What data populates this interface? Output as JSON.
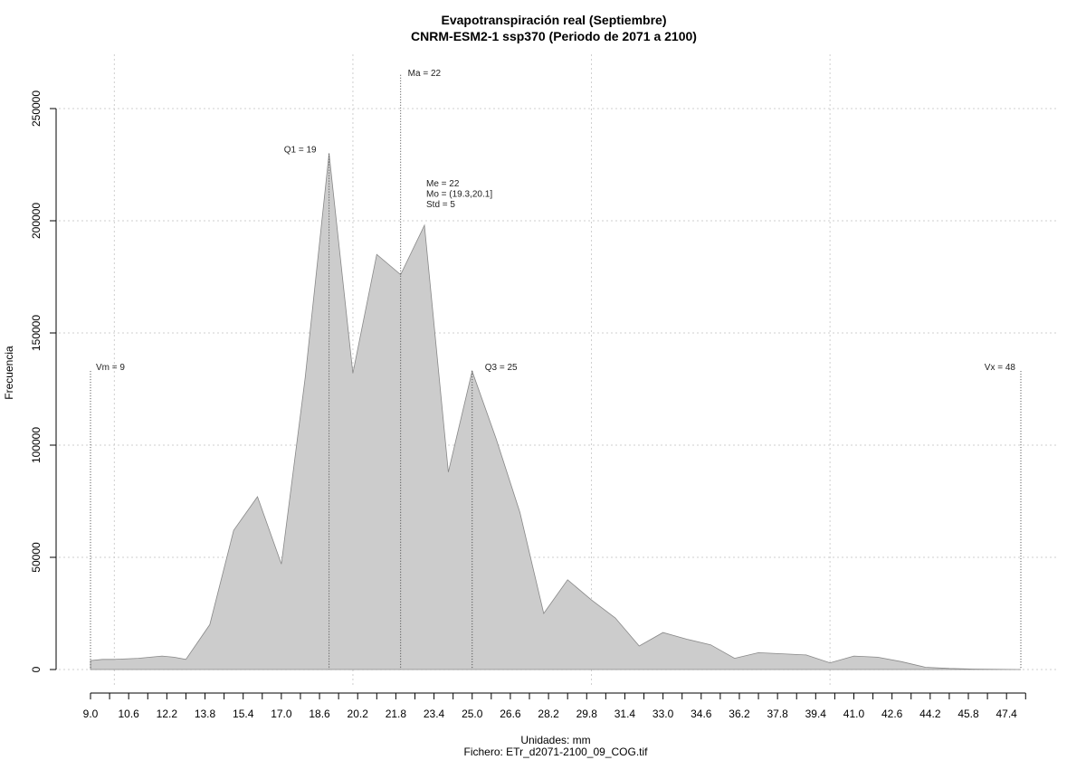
{
  "chart_data": {
    "type": "area",
    "title": "Evapotranspiración real (Septiembre)",
    "subtitle": "CNRM-ESM2-1 ssp370 (Periodo de 2071 a 2100)",
    "xlabel": "Unidades: mm",
    "ylabel": "Frecuencia",
    "caption": "Fichero: ETr_d2071-2100_09_COG.tif",
    "xlim": [
      9.0,
      48.0
    ],
    "ylim": [
      0,
      250000
    ],
    "x_ticks": [
      "9.0",
      "10.6",
      "12.2",
      "13.8",
      "15.4",
      "17.0",
      "18.6",
      "20.2",
      "21.8",
      "23.4",
      "25.0",
      "26.6",
      "28.2",
      "29.8",
      "31.4",
      "33.0",
      "34.6",
      "36.2",
      "37.8",
      "39.4",
      "41.0",
      "42.6",
      "44.2",
      "45.8",
      "47.4"
    ],
    "y_ticks": [
      "0",
      "50000",
      "100000",
      "150000",
      "200000",
      "250000"
    ],
    "grid": true,
    "series": [
      {
        "x": [
          9.0,
          9.5,
          10.0,
          11.0,
          12.0,
          12.5,
          13.0,
          14.0,
          15.0,
          16.0,
          17.0,
          18.0,
          19.0,
          20.0,
          21.0,
          22.0,
          23.0,
          24.0,
          25.0,
          26.0,
          27.0,
          28.0,
          29.0,
          30.0,
          31.0,
          32.0,
          33.0,
          34.0,
          35.0,
          36.0,
          37.0,
          38.0,
          39.0,
          40.0,
          41.0,
          42.0,
          43.0,
          44.0,
          45.0,
          46.0,
          47.0,
          48.0
        ],
        "y": [
          4000,
          4500,
          4500,
          5000,
          6000,
          5500,
          4500,
          20000,
          62000,
          77000,
          47000,
          130000,
          230000,
          132000,
          185000,
          176000,
          198000,
          88000,
          133000,
          103000,
          70000,
          25000,
          40000,
          31000,
          23000,
          10500,
          16500,
          13500,
          11000,
          5000,
          7500,
          7000,
          6500,
          3000,
          6000,
          5500,
          3500,
          1000,
          500,
          200,
          100,
          0
        ],
        "color": "#cccccc"
      }
    ],
    "annotations": [
      {
        "label": "Ma = 22",
        "x": 22.0
      },
      {
        "label": "Q1 = 19",
        "x": 19.0
      },
      {
        "label": "Q3 = 25",
        "x": 25.0
      },
      {
        "label": "Vm = 9",
        "x": 9.0
      },
      {
        "label": "Vx = 48",
        "x": 48.0
      },
      {
        "label": "Me = 22"
      },
      {
        "label": "Mo = (19.3,20.1]"
      },
      {
        "label": "Std = 5"
      }
    ]
  }
}
